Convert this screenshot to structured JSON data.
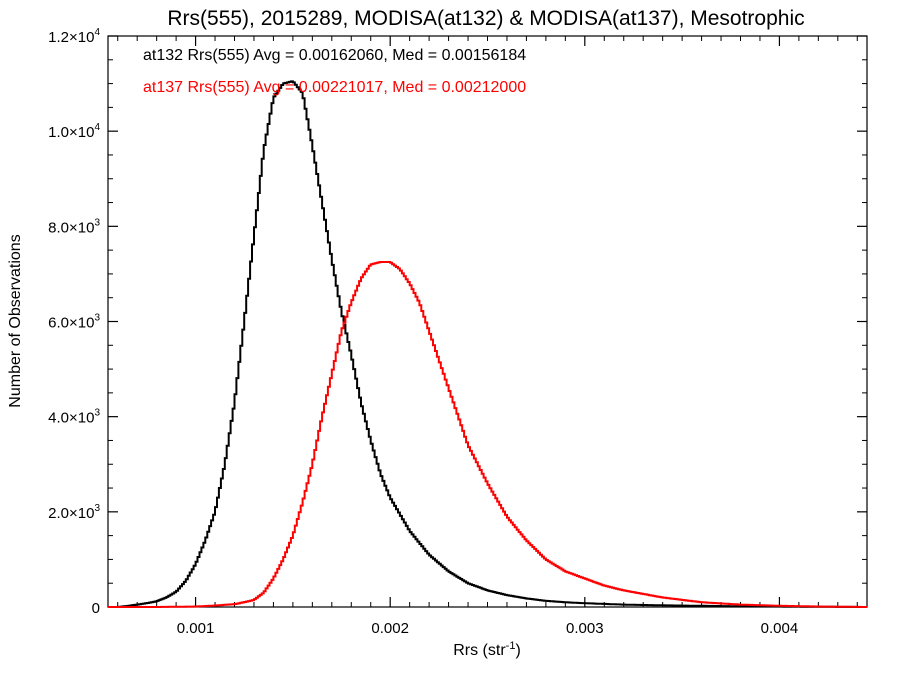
{
  "chart_data": {
    "type": "line",
    "title": "Rrs(555), 2015289, MODISA(at132) & MODISA(at137), Mesotrophic",
    "xlabel": "Rrs (str",
    "xlabel_sup": "-1",
    "xlabel_suffix": ")",
    "ylabel": "Number of Observations",
    "xlim": [
      0.00055,
      0.00445
    ],
    "ylim": [
      0,
      12000
    ],
    "x_ticks": [
      0.001,
      0.002,
      0.003,
      0.004
    ],
    "x_tick_labels": [
      "0.001",
      "0.002",
      "0.003",
      "0.004"
    ],
    "y_ticks": [
      0,
      2000,
      4000,
      6000,
      8000,
      10000,
      12000
    ],
    "y_tick_labels": [
      {
        "mant": "0",
        "sup": ""
      },
      {
        "mant": "2.0×10",
        "sup": "3"
      },
      {
        "mant": "4.0×10",
        "sup": "3"
      },
      {
        "mant": "6.0×10",
        "sup": "3"
      },
      {
        "mant": "8.0×10",
        "sup": "3"
      },
      {
        "mant": "1.0×10",
        "sup": "4"
      },
      {
        "mant": "1.2×10",
        "sup": "4"
      }
    ],
    "grid": false,
    "series": [
      {
        "name": "at132",
        "color": "#000000",
        "annotation": "at132 Rrs(555) Avg = 0.00162060, Med = 0.00156184",
        "x": [
          0.0006,
          0.00065,
          0.0007,
          0.00075,
          0.0008,
          0.00085,
          0.0009,
          0.00095,
          0.001,
          0.00105,
          0.0011,
          0.00115,
          0.0012,
          0.00125,
          0.0013,
          0.00135,
          0.0014,
          0.00145,
          0.0015,
          0.00155,
          0.0016,
          0.00165,
          0.0017,
          0.00175,
          0.0018,
          0.00185,
          0.0019,
          0.00195,
          0.002,
          0.0021,
          0.0022,
          0.0023,
          0.0024,
          0.0025,
          0.0026,
          0.0027,
          0.0028,
          0.0029,
          0.003,
          0.0032,
          0.0034,
          0.0036,
          0.0038,
          0.004,
          0.0042,
          0.00445
        ],
        "y": [
          0,
          20,
          50,
          80,
          120,
          200,
          320,
          550,
          900,
          1400,
          2000,
          3000,
          4300,
          6000,
          7800,
          9600,
          10700,
          11000,
          11050,
          10800,
          9700,
          8500,
          7300,
          6200,
          5300,
          4300,
          3500,
          2800,
          2300,
          1600,
          1100,
          750,
          500,
          350,
          250,
          180,
          130,
          100,
          80,
          50,
          35,
          25,
          15,
          10,
          5,
          0
        ]
      },
      {
        "name": "at137",
        "color": "#ff0000",
        "annotation": "at137 Rrs(555) Avg = 0.00221017, Med = 0.00212000",
        "x": [
          0.0006,
          0.0008,
          0.001,
          0.0011,
          0.0012,
          0.00125,
          0.0013,
          0.00135,
          0.0014,
          0.00145,
          0.0015,
          0.00155,
          0.0016,
          0.00165,
          0.0017,
          0.00175,
          0.0018,
          0.00185,
          0.0019,
          0.00195,
          0.002,
          0.00205,
          0.0021,
          0.00215,
          0.0022,
          0.00225,
          0.0023,
          0.00235,
          0.0024,
          0.0025,
          0.0026,
          0.0027,
          0.0028,
          0.0029,
          0.003,
          0.0031,
          0.0032,
          0.0034,
          0.0036,
          0.0038,
          0.004,
          0.0042,
          0.00445
        ],
        "y": [
          0,
          0,
          10,
          30,
          60,
          100,
          150,
          300,
          600,
          1000,
          1500,
          2200,
          3000,
          4000,
          4900,
          5800,
          6400,
          6900,
          7200,
          7250,
          7250,
          7100,
          6800,
          6400,
          5800,
          5200,
          4600,
          4000,
          3400,
          2600,
          1900,
          1400,
          1000,
          750,
          600,
          450,
          350,
          200,
          100,
          50,
          25,
          10,
          0
        ]
      }
    ]
  }
}
